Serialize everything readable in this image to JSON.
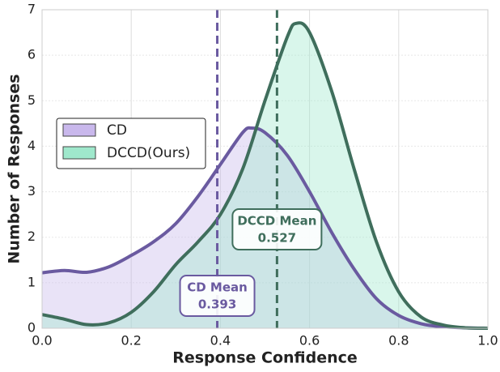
{
  "chart_data": {
    "type": "kde",
    "x_label": "Response Confidence",
    "y_label": "Number of Responses",
    "xlim": [
      0,
      1
    ],
    "ylim": [
      0,
      7
    ],
    "xticks": [
      {
        "value": 0,
        "label": "0.0"
      },
      {
        "value": 0.2,
        "label": "0.2"
      },
      {
        "value": 0.4,
        "label": "0.4"
      },
      {
        "value": 0.6,
        "label": "0.6"
      },
      {
        "value": 0.8,
        "label": "0.8"
      },
      {
        "value": 1,
        "label": "1.0"
      }
    ],
    "yticks": [
      0,
      1,
      2,
      3,
      4,
      5,
      6,
      7
    ],
    "grid": true,
    "legend": "center-left",
    "series": [
      {
        "name": "CD",
        "color": "#6a5aa0",
        "fill": "#c9b8ec",
        "x": [
          0,
          0.05,
          0.1,
          0.15,
          0.2,
          0.25,
          0.3,
          0.35,
          0.4,
          0.45,
          0.47,
          0.5,
          0.55,
          0.6,
          0.65,
          0.7,
          0.75,
          0.8,
          0.85,
          0.9,
          0.95,
          1.0
        ],
        "values": [
          1.22,
          1.27,
          1.23,
          1.35,
          1.6,
          1.9,
          2.3,
          2.9,
          3.6,
          4.3,
          4.4,
          4.3,
          3.8,
          3.0,
          2.1,
          1.3,
          0.65,
          0.28,
          0.1,
          0.03,
          0.01,
          0
        ]
      },
      {
        "name": "DCCD(Ours)",
        "color": "#3f6e5c",
        "fill": "#9fe8cc",
        "x": [
          0,
          0.05,
          0.1,
          0.15,
          0.2,
          0.25,
          0.3,
          0.35,
          0.4,
          0.45,
          0.5,
          0.55,
          0.57,
          0.6,
          0.65,
          0.7,
          0.75,
          0.8,
          0.85,
          0.9,
          0.95,
          1.0
        ],
        "values": [
          0.3,
          0.2,
          0.08,
          0.12,
          0.35,
          0.8,
          1.4,
          1.9,
          2.5,
          3.5,
          5.0,
          6.4,
          6.7,
          6.5,
          5.2,
          3.5,
          1.9,
          0.8,
          0.25,
          0.07,
          0.01,
          0
        ]
      }
    ],
    "means": [
      {
        "label": "CD Mean",
        "value": 0.393,
        "color": "#6a5aa0"
      },
      {
        "label": "DCCD Mean",
        "value": 0.527,
        "color": "#3f6e5c"
      }
    ]
  }
}
